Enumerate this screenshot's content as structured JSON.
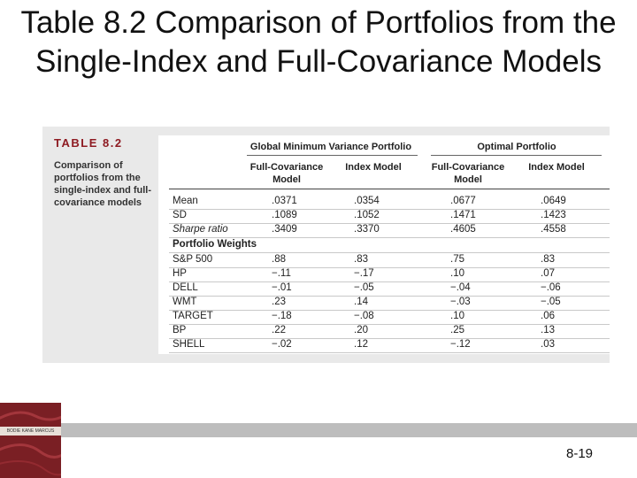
{
  "slide": {
    "title": "Table 8.2 Comparison of Portfolios from the Single-Index and Full-Covariance Models",
    "page_number": "8-19"
  },
  "table": {
    "label": "TABLE 8.2",
    "caption": "Comparison of portfolios from the single-index and full-covariance models",
    "groups": [
      "Global Minimum Variance Portfolio",
      "Optimal Portfolio"
    ],
    "columns": [
      "Full-Covariance Model",
      "Index Model",
      "Full-Covariance Model",
      "Index Model"
    ],
    "stats_rows": [
      {
        "label": "Mean",
        "values": [
          ".0371",
          ".0354",
          ".0677",
          ".0649"
        ]
      },
      {
        "label": "SD",
        "values": [
          ".1089",
          ".1052",
          ".1471",
          ".1423"
        ]
      },
      {
        "label": "Sharpe ratio",
        "values": [
          ".3409",
          ".3370",
          ".4605",
          ".4558"
        ]
      }
    ],
    "weights_heading": "Portfolio Weights",
    "weight_rows": [
      {
        "label": "S&P 500",
        "values": [
          ".88",
          ".83",
          ".75",
          ".83"
        ]
      },
      {
        "label": "HP",
        "values": [
          "−.11",
          "−.17",
          ".10",
          ".07"
        ]
      },
      {
        "label": "DELL",
        "values": [
          "−.01",
          "−.05",
          "−.04",
          "−.06"
        ]
      },
      {
        "label": "WMT",
        "values": [
          ".23",
          ".14",
          "−.03",
          "−.05"
        ]
      },
      {
        "label": "TARGET",
        "values": [
          "−.18",
          "−.08",
          ".10",
          ".06"
        ]
      },
      {
        "label": "BP",
        "values": [
          ".22",
          ".20",
          ".25",
          ".13"
        ]
      },
      {
        "label": "SHELL",
        "values": [
          "−.02",
          ".12",
          "−.12",
          ".03"
        ]
      }
    ]
  },
  "book_cover": {
    "band_text": "BODIE KANE MARCUS"
  },
  "colors": {
    "table_label": "#8e1b22",
    "cover": "#7a1f24",
    "panel_bg": "#e9e9e9",
    "bar": "#bdbdbd"
  }
}
